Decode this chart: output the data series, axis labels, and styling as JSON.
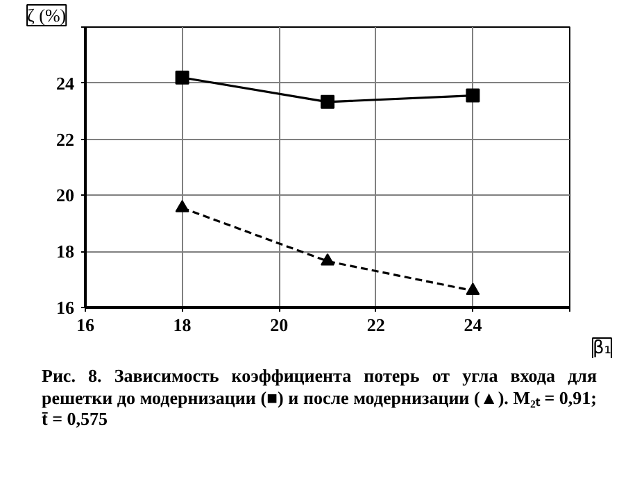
{
  "chart_data": {
    "type": "line",
    "xlabel": "β₁",
    "ylabel": "ζ (%)",
    "x": [
      18,
      21,
      24
    ],
    "series": [
      {
        "color": "#000000",
        "values": [
          24.2,
          23.33,
          23.56
        ],
        "marker": "square",
        "line_style": "solid"
      },
      {
        "color": "#000000",
        "values": [
          19.55,
          17.65,
          16.6
        ],
        "marker": "triangle",
        "line_style": "dashed"
      }
    ],
    "xlim": [
      16,
      26
    ],
    "ylim": [
      16,
      26
    ],
    "xticks": [
      16,
      18,
      20,
      22,
      24,
      {
        "value": 26,
        "label": null
      }
    ],
    "yticks": [
      16,
      18,
      20,
      22,
      24,
      {
        "value": 26,
        "label": null
      }
    ],
    "grid": true,
    "annotations": [
      "Рис. 8.  Зависимость коэффициента потерь от угла входа для решетки до модернизации (■) и после модернизации (▲). M₂ₜ = 0,91; t̄ = 0,575"
    ]
  }
}
